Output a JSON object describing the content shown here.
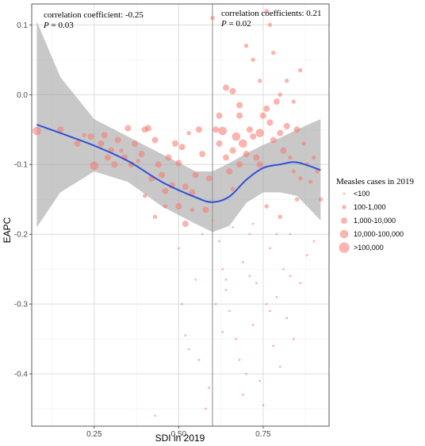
{
  "chart_data": {
    "type": "scatter",
    "xlabel": "SDI in 2019",
    "ylabel": "EAPC",
    "xlim": [
      0.065,
      0.945
    ],
    "ylim": [
      -0.475,
      0.13
    ],
    "x_ticks": [
      0.25,
      0.5,
      0.75
    ],
    "x_tick_labels": [
      "0.25",
      "0.50",
      "0.75"
    ],
    "y_ticks": [
      0.1,
      0.0,
      -0.1,
      -0.2,
      -0.3,
      -0.4
    ],
    "y_tick_labels": [
      "0.1",
      "0.0",
      "-0.1",
      "-0.2",
      "-0.3",
      "-0.4"
    ],
    "grid": true,
    "vline_x": 0.6,
    "point_color": "#f8766d",
    "smooth_color": "#2f4fd6",
    "band_color": "#9a9a9a",
    "legend": {
      "title": "Measles cases in 2019",
      "position": "right",
      "entries": [
        {
          "label": "<100",
          "size": 1
        },
        {
          "label": "100-1,000",
          "size": 2
        },
        {
          "label": "1,000-10,000",
          "size": 3
        },
        {
          "label": "10,000-100,000",
          "size": 4
        },
        {
          "label": ">100,000",
          "size": 5
        }
      ]
    },
    "annotations": [
      {
        "line1": "correlation coefficient: -0.25",
        "p_label": "P",
        "p_value": " = 0.03"
      },
      {
        "line1": "correlation coefficients: 0.21",
        "p_label": "P",
        "p_value": " = 0.02"
      }
    ],
    "smooth": {
      "x": [
        0.08,
        0.15,
        0.25,
        0.35,
        0.45,
        0.55,
        0.6,
        0.65,
        0.7,
        0.75,
        0.8,
        0.85,
        0.92
      ],
      "y": [
        -0.043,
        -0.055,
        -0.073,
        -0.095,
        -0.125,
        -0.147,
        -0.154,
        -0.146,
        -0.122,
        -0.105,
        -0.1,
        -0.097,
        -0.108
      ],
      "lower": [
        -0.19,
        -0.14,
        -0.11,
        -0.125,
        -0.16,
        -0.185,
        -0.197,
        -0.188,
        -0.155,
        -0.14,
        -0.14,
        -0.145,
        -0.18
      ],
      "upper": [
        0.105,
        0.025,
        -0.035,
        -0.06,
        -0.085,
        -0.11,
        -0.11,
        -0.098,
        -0.084,
        -0.072,
        -0.062,
        -0.05,
        -0.035
      ]
    },
    "points": [
      {
        "x": 0.08,
        "y": -0.052,
        "s": 4
      },
      {
        "x": 0.15,
        "y": -0.05,
        "s": 3
      },
      {
        "x": 0.2,
        "y": -0.07,
        "s": 3
      },
      {
        "x": 0.22,
        "y": -0.058,
        "s": 2
      },
      {
        "x": 0.24,
        "y": -0.06,
        "s": 3
      },
      {
        "x": 0.25,
        "y": -0.102,
        "s": 4
      },
      {
        "x": 0.27,
        "y": -0.07,
        "s": 3
      },
      {
        "x": 0.28,
        "y": -0.058,
        "s": 3
      },
      {
        "x": 0.29,
        "y": -0.09,
        "s": 3
      },
      {
        "x": 0.3,
        "y": -0.08,
        "s": 3
      },
      {
        "x": 0.31,
        "y": -0.1,
        "s": 3
      },
      {
        "x": 0.32,
        "y": -0.065,
        "s": 3
      },
      {
        "x": 0.33,
        "y": -0.08,
        "s": 2
      },
      {
        "x": 0.34,
        "y": -0.09,
        "s": 3
      },
      {
        "x": 0.35,
        "y": -0.048,
        "s": 3
      },
      {
        "x": 0.36,
        "y": -0.1,
        "s": 3
      },
      {
        "x": 0.37,
        "y": -0.07,
        "s": 3
      },
      {
        "x": 0.38,
        "y": -0.095,
        "s": 2
      },
      {
        "x": 0.39,
        "y": -0.085,
        "s": 3
      },
      {
        "x": 0.4,
        "y": -0.05,
        "s": 3
      },
      {
        "x": 0.41,
        "y": -0.048,
        "s": 3
      },
      {
        "x": 0.42,
        "y": -0.12,
        "s": 3
      },
      {
        "x": 0.43,
        "y": -0.065,
        "s": 3
      },
      {
        "x": 0.44,
        "y": -0.1,
        "s": 3
      },
      {
        "x": 0.45,
        "y": -0.115,
        "s": 3
      },
      {
        "x": 0.46,
        "y": -0.138,
        "s": 3
      },
      {
        "x": 0.47,
        "y": -0.09,
        "s": 3
      },
      {
        "x": 0.48,
        "y": -0.13,
        "s": 3
      },
      {
        "x": 0.49,
        "y": -0.07,
        "s": 3
      },
      {
        "x": 0.5,
        "y": -0.098,
        "s": 3
      },
      {
        "x": 0.51,
        "y": -0.075,
        "s": 3
      },
      {
        "x": 0.52,
        "y": -0.132,
        "s": 3
      },
      {
        "x": 0.53,
        "y": -0.055,
        "s": 2
      },
      {
        "x": 0.54,
        "y": -0.14,
        "s": 3
      },
      {
        "x": 0.55,
        "y": -0.115,
        "s": 3
      },
      {
        "x": 0.56,
        "y": -0.05,
        "s": 3
      },
      {
        "x": 0.57,
        "y": -0.085,
        "s": 3
      },
      {
        "x": 0.58,
        "y": -0.165,
        "s": 3
      },
      {
        "x": 0.59,
        "y": -0.12,
        "s": 3
      },
      {
        "x": 0.4,
        "y": -0.145,
        "s": 2
      },
      {
        "x": 0.43,
        "y": -0.175,
        "s": 2
      },
      {
        "x": 0.46,
        "y": -0.16,
        "s": 2
      },
      {
        "x": 0.5,
        "y": -0.16,
        "s": 3
      },
      {
        "x": 0.52,
        "y": -0.185,
        "s": 3
      },
      {
        "x": 0.54,
        "y": -0.165,
        "s": 2
      },
      {
        "x": 0.5,
        "y": -0.22,
        "s": 1
      },
      {
        "x": 0.51,
        "y": -0.3,
        "s": 1
      },
      {
        "x": 0.52,
        "y": -0.345,
        "s": 1
      },
      {
        "x": 0.53,
        "y": -0.365,
        "s": 1
      },
      {
        "x": 0.55,
        "y": -0.265,
        "s": 1
      },
      {
        "x": 0.56,
        "y": -0.38,
        "s": 1
      },
      {
        "x": 0.57,
        "y": -0.2,
        "s": 1
      },
      {
        "x": 0.58,
        "y": -0.45,
        "s": 1
      },
      {
        "x": 0.59,
        "y": -0.42,
        "s": 1
      },
      {
        "x": 0.43,
        "y": -0.46,
        "s": 1
      },
      {
        "x": 0.6,
        "y": 0.11,
        "s": 2
      },
      {
        "x": 0.61,
        "y": -0.05,
        "s": 3
      },
      {
        "x": 0.62,
        "y": -0.07,
        "s": 3
      },
      {
        "x": 0.63,
        "y": -0.052,
        "s": 4
      },
      {
        "x": 0.64,
        "y": -0.09,
        "s": 3
      },
      {
        "x": 0.65,
        "y": -0.11,
        "s": 3
      },
      {
        "x": 0.66,
        "y": -0.08,
        "s": 3
      },
      {
        "x": 0.67,
        "y": -0.06,
        "s": 4
      },
      {
        "x": 0.68,
        "y": -0.1,
        "s": 3
      },
      {
        "x": 0.69,
        "y": -0.07,
        "s": 4
      },
      {
        "x": 0.7,
        "y": -0.085,
        "s": 3
      },
      {
        "x": 0.71,
        "y": -0.05,
        "s": 3
      },
      {
        "x": 0.72,
        "y": -0.06,
        "s": 3
      },
      {
        "x": 0.73,
        "y": -0.09,
        "s": 3
      },
      {
        "x": 0.74,
        "y": -0.1,
        "s": 3
      },
      {
        "x": 0.75,
        "y": -0.03,
        "s": 3
      },
      {
        "x": 0.76,
        "y": -0.02,
        "s": 3
      },
      {
        "x": 0.77,
        "y": -0.04,
        "s": 3
      },
      {
        "x": 0.78,
        "y": -0.065,
        "s": 3
      },
      {
        "x": 0.79,
        "y": -0.01,
        "s": 3
      },
      {
        "x": 0.8,
        "y": -0.055,
        "s": 3
      },
      {
        "x": 0.81,
        "y": -0.08,
        "s": 3
      },
      {
        "x": 0.82,
        "y": -0.045,
        "s": 3
      },
      {
        "x": 0.83,
        "y": -0.09,
        "s": 2
      },
      {
        "x": 0.84,
        "y": -0.11,
        "s": 2
      },
      {
        "x": 0.85,
        "y": -0.05,
        "s": 3
      },
      {
        "x": 0.86,
        "y": -0.12,
        "s": 2
      },
      {
        "x": 0.87,
        "y": -0.07,
        "s": 2
      },
      {
        "x": 0.88,
        "y": -0.1,
        "s": 2
      },
      {
        "x": 0.89,
        "y": -0.125,
        "s": 2
      },
      {
        "x": 0.9,
        "y": -0.09,
        "s": 2
      },
      {
        "x": 0.91,
        "y": -0.11,
        "s": 2
      },
      {
        "x": 0.92,
        "y": -0.15,
        "s": 2
      },
      {
        "x": 0.64,
        "y": 0.01,
        "s": 3
      },
      {
        "x": 0.66,
        "y": 0.005,
        "s": 3
      },
      {
        "x": 0.68,
        "y": -0.015,
        "s": 3
      },
      {
        "x": 0.7,
        "y": 0.07,
        "s": 2
      },
      {
        "x": 0.72,
        "y": 0.05,
        "s": 2
      },
      {
        "x": 0.74,
        "y": 0.02,
        "s": 2
      },
      {
        "x": 0.76,
        "y": 0.12,
        "s": 2
      },
      {
        "x": 0.78,
        "y": 0.06,
        "s": 2
      },
      {
        "x": 0.8,
        "y": 0.0,
        "s": 2
      },
      {
        "x": 0.82,
        "y": 0.02,
        "s": 2
      },
      {
        "x": 0.84,
        "y": -0.01,
        "s": 2
      },
      {
        "x": 0.86,
        "y": 0.035,
        "s": 2
      },
      {
        "x": 0.77,
        "y": 0.1,
        "s": 2
      },
      {
        "x": 0.74,
        "y": -0.055,
        "s": 4
      },
      {
        "x": 0.62,
        "y": -0.03,
        "s": 3
      },
      {
        "x": 0.68,
        "y": -0.03,
        "s": 3
      },
      {
        "x": 0.6,
        "y": -0.18,
        "s": 1
      },
      {
        "x": 0.62,
        "y": -0.21,
        "s": 1
      },
      {
        "x": 0.63,
        "y": -0.25,
        "s": 1
      },
      {
        "x": 0.64,
        "y": -0.28,
        "s": 1
      },
      {
        "x": 0.65,
        "y": -0.31,
        "s": 1
      },
      {
        "x": 0.66,
        "y": -0.19,
        "s": 1
      },
      {
        "x": 0.67,
        "y": -0.35,
        "s": 1
      },
      {
        "x": 0.68,
        "y": -0.38,
        "s": 1
      },
      {
        "x": 0.69,
        "y": -0.24,
        "s": 1
      },
      {
        "x": 0.7,
        "y": -0.4,
        "s": 1
      },
      {
        "x": 0.71,
        "y": -0.2,
        "s": 1
      },
      {
        "x": 0.72,
        "y": -0.33,
        "s": 1
      },
      {
        "x": 0.73,
        "y": -0.27,
        "s": 1
      },
      {
        "x": 0.74,
        "y": -0.41,
        "s": 1
      },
      {
        "x": 0.75,
        "y": -0.445,
        "s": 1
      },
      {
        "x": 0.76,
        "y": -0.3,
        "s": 1
      },
      {
        "x": 0.77,
        "y": -0.22,
        "s": 1
      },
      {
        "x": 0.78,
        "y": -0.36,
        "s": 1
      },
      {
        "x": 0.79,
        "y": -0.29,
        "s": 1
      },
      {
        "x": 0.8,
        "y": -0.39,
        "s": 1
      },
      {
        "x": 0.81,
        "y": -0.25,
        "s": 1
      },
      {
        "x": 0.82,
        "y": -0.32,
        "s": 1
      },
      {
        "x": 0.83,
        "y": -0.2,
        "s": 1
      },
      {
        "x": 0.84,
        "y": -0.35,
        "s": 1
      },
      {
        "x": 0.86,
        "y": -0.27,
        "s": 1
      },
      {
        "x": 0.88,
        "y": -0.23,
        "s": 1
      },
      {
        "x": 0.9,
        "y": -0.21,
        "s": 1
      },
      {
        "x": 0.85,
        "y": -0.15,
        "s": 2
      },
      {
        "x": 0.8,
        "y": -0.175,
        "s": 2
      },
      {
        "x": 0.76,
        "y": -0.16,
        "s": 2
      },
      {
        "x": 0.72,
        "y": -0.185,
        "s": 1
      },
      {
        "x": 0.66,
        "y": -0.135,
        "s": 2
      },
      {
        "x": 0.64,
        "y": -0.265,
        "s": 1
      },
      {
        "x": 0.61,
        "y": -0.3,
        "s": 1
      },
      {
        "x": 0.63,
        "y": -0.34,
        "s": 1
      },
      {
        "x": 0.69,
        "y": -0.43,
        "s": 1
      },
      {
        "x": 0.71,
        "y": -0.26,
        "s": 1
      },
      {
        "x": 0.77,
        "y": -0.31,
        "s": 1
      },
      {
        "x": 0.79,
        "y": -0.2,
        "s": 1
      },
      {
        "x": 0.83,
        "y": -0.26,
        "s": 1
      }
    ]
  }
}
